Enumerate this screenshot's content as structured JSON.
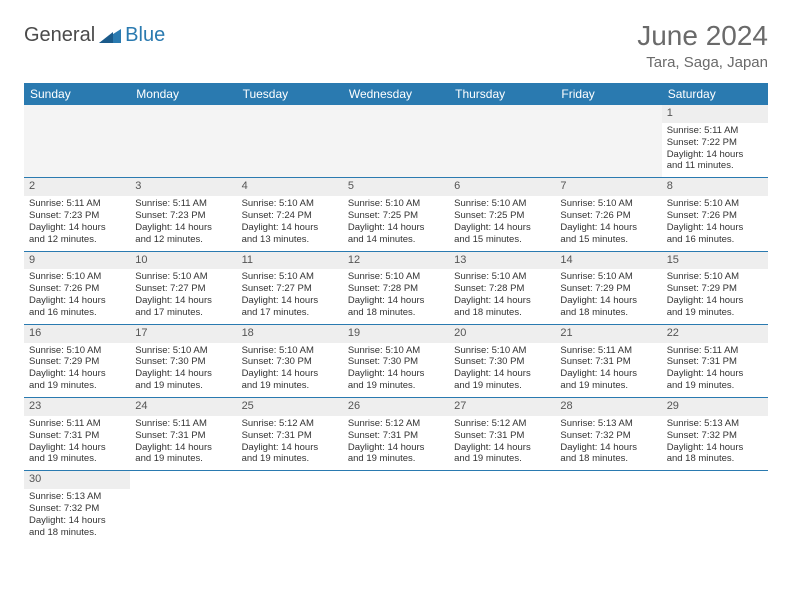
{
  "logo": {
    "word1": "General",
    "word2": "Blue"
  },
  "title": "June 2024",
  "location": "Tara, Saga, Japan",
  "colors": {
    "header_bg": "#2a7ab0",
    "header_text": "#ffffff",
    "border": "#2a7ab0",
    "numbg": "#eeeeee"
  },
  "weekdays": [
    "Sunday",
    "Monday",
    "Tuesday",
    "Wednesday",
    "Thursday",
    "Friday",
    "Saturday"
  ],
  "first_blank": 6,
  "days": [
    {
      "n": 1,
      "sr": "5:11 AM",
      "ss": "7:22 PM",
      "dh": 14,
      "dm": 11
    },
    {
      "n": 2,
      "sr": "5:11 AM",
      "ss": "7:23 PM",
      "dh": 14,
      "dm": 12
    },
    {
      "n": 3,
      "sr": "5:11 AM",
      "ss": "7:23 PM",
      "dh": 14,
      "dm": 12
    },
    {
      "n": 4,
      "sr": "5:10 AM",
      "ss": "7:24 PM",
      "dh": 14,
      "dm": 13
    },
    {
      "n": 5,
      "sr": "5:10 AM",
      "ss": "7:25 PM",
      "dh": 14,
      "dm": 14
    },
    {
      "n": 6,
      "sr": "5:10 AM",
      "ss": "7:25 PM",
      "dh": 14,
      "dm": 15
    },
    {
      "n": 7,
      "sr": "5:10 AM",
      "ss": "7:26 PM",
      "dh": 14,
      "dm": 15
    },
    {
      "n": 8,
      "sr": "5:10 AM",
      "ss": "7:26 PM",
      "dh": 14,
      "dm": 16
    },
    {
      "n": 9,
      "sr": "5:10 AM",
      "ss": "7:26 PM",
      "dh": 14,
      "dm": 16
    },
    {
      "n": 10,
      "sr": "5:10 AM",
      "ss": "7:27 PM",
      "dh": 14,
      "dm": 17
    },
    {
      "n": 11,
      "sr": "5:10 AM",
      "ss": "7:27 PM",
      "dh": 14,
      "dm": 17
    },
    {
      "n": 12,
      "sr": "5:10 AM",
      "ss": "7:28 PM",
      "dh": 14,
      "dm": 18
    },
    {
      "n": 13,
      "sr": "5:10 AM",
      "ss": "7:28 PM",
      "dh": 14,
      "dm": 18
    },
    {
      "n": 14,
      "sr": "5:10 AM",
      "ss": "7:29 PM",
      "dh": 14,
      "dm": 18
    },
    {
      "n": 15,
      "sr": "5:10 AM",
      "ss": "7:29 PM",
      "dh": 14,
      "dm": 19
    },
    {
      "n": 16,
      "sr": "5:10 AM",
      "ss": "7:29 PM",
      "dh": 14,
      "dm": 19
    },
    {
      "n": 17,
      "sr": "5:10 AM",
      "ss": "7:30 PM",
      "dh": 14,
      "dm": 19
    },
    {
      "n": 18,
      "sr": "5:10 AM",
      "ss": "7:30 PM",
      "dh": 14,
      "dm": 19
    },
    {
      "n": 19,
      "sr": "5:10 AM",
      "ss": "7:30 PM",
      "dh": 14,
      "dm": 19
    },
    {
      "n": 20,
      "sr": "5:10 AM",
      "ss": "7:30 PM",
      "dh": 14,
      "dm": 19
    },
    {
      "n": 21,
      "sr": "5:11 AM",
      "ss": "7:31 PM",
      "dh": 14,
      "dm": 19
    },
    {
      "n": 22,
      "sr": "5:11 AM",
      "ss": "7:31 PM",
      "dh": 14,
      "dm": 19
    },
    {
      "n": 23,
      "sr": "5:11 AM",
      "ss": "7:31 PM",
      "dh": 14,
      "dm": 19
    },
    {
      "n": 24,
      "sr": "5:11 AM",
      "ss": "7:31 PM",
      "dh": 14,
      "dm": 19
    },
    {
      "n": 25,
      "sr": "5:12 AM",
      "ss": "7:31 PM",
      "dh": 14,
      "dm": 19
    },
    {
      "n": 26,
      "sr": "5:12 AM",
      "ss": "7:31 PM",
      "dh": 14,
      "dm": 19
    },
    {
      "n": 27,
      "sr": "5:12 AM",
      "ss": "7:31 PM",
      "dh": 14,
      "dm": 19
    },
    {
      "n": 28,
      "sr": "5:13 AM",
      "ss": "7:32 PM",
      "dh": 14,
      "dm": 18
    },
    {
      "n": 29,
      "sr": "5:13 AM",
      "ss": "7:32 PM",
      "dh": 14,
      "dm": 18
    },
    {
      "n": 30,
      "sr": "5:13 AM",
      "ss": "7:32 PM",
      "dh": 14,
      "dm": 18
    }
  ],
  "labels": {
    "sunrise": "Sunrise:",
    "sunset": "Sunset:",
    "daylight": "Daylight:",
    "hours": "hours",
    "and": "and",
    "minutes": "minutes."
  }
}
